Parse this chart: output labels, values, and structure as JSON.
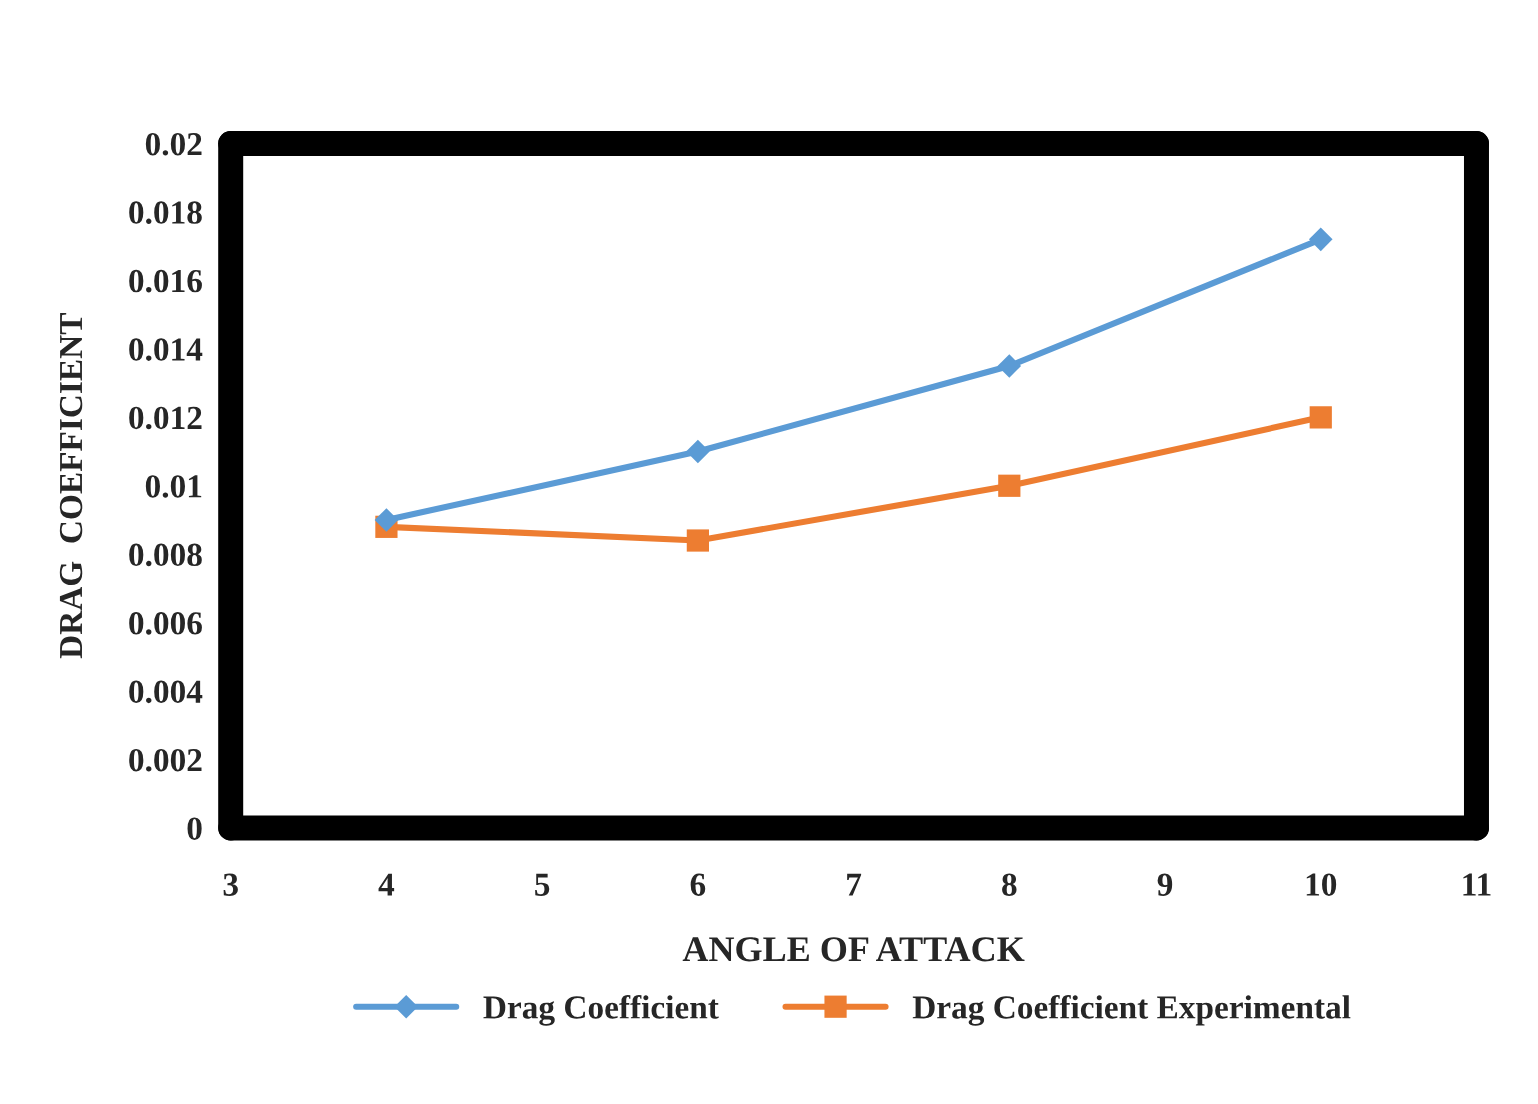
{
  "chart_data": {
    "type": "line",
    "xlabel": "ANGLE OF ATTACK",
    "ylabel": "DRAG  COEFFICIENT",
    "x": [
      4,
      6,
      8,
      10
    ],
    "series": [
      {
        "name": "Drag Coefficient",
        "color": "#5b9bd5",
        "values": [
          0.009,
          0.011,
          0.0135,
          0.0172
        ],
        "marker": "diamond"
      },
      {
        "name": "Drag Coefficient Experimental",
        "color": "#ed7d31",
        "values": [
          0.0088,
          0.0084,
          0.01,
          0.012
        ],
        "marker": "square"
      }
    ],
    "xlim": [
      3,
      11
    ],
    "xticks": [
      3,
      4,
      5,
      6,
      7,
      8,
      9,
      10,
      11
    ],
    "ylim": [
      0,
      0.02
    ],
    "yticks": [
      0,
      0.002,
      0.004,
      0.006,
      0.008,
      0.01,
      0.012,
      0.014,
      0.016,
      0.018,
      0.02
    ],
    "grid": false,
    "legend": "bottom"
  }
}
